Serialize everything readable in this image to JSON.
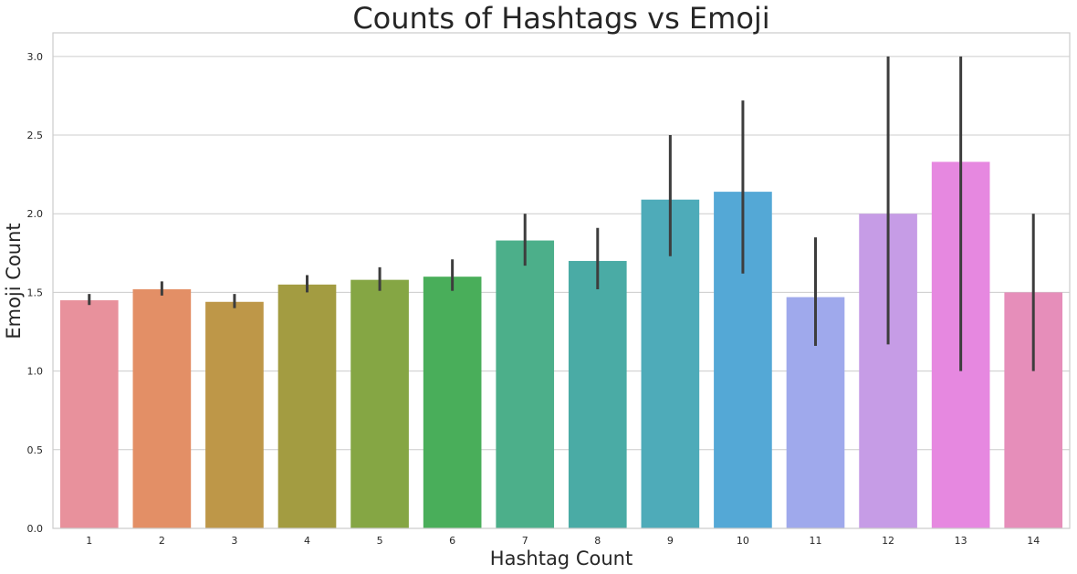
{
  "chart_data": {
    "type": "bar",
    "title": "Counts of Hashtags vs Emoji",
    "xlabel": "Hashtag Count",
    "ylabel": "Emoji Count",
    "categories": [
      "1",
      "2",
      "3",
      "4",
      "5",
      "6",
      "7",
      "8",
      "9",
      "10",
      "11",
      "12",
      "13",
      "14"
    ],
    "values": [
      1.45,
      1.52,
      1.44,
      1.55,
      1.58,
      1.6,
      1.83,
      1.7,
      2.09,
      2.14,
      1.47,
      2.0,
      2.33,
      1.5
    ],
    "error_low": [
      1.42,
      1.48,
      1.4,
      1.5,
      1.51,
      1.51,
      1.67,
      1.52,
      1.73,
      1.62,
      1.16,
      1.17,
      1.0,
      1.0
    ],
    "error_high": [
      1.49,
      1.57,
      1.49,
      1.61,
      1.66,
      1.71,
      2.0,
      1.91,
      2.5,
      2.72,
      1.85,
      3.0,
      3.0,
      2.0
    ],
    "colors": [
      "#e8919c",
      "#e38f66",
      "#be9748",
      "#a39c41",
      "#85a644",
      "#49ae5a",
      "#4caf8a",
      "#4aaba5",
      "#4eabb9",
      "#54a8d6",
      "#9fa9ec",
      "#c69ce6",
      "#e688e0",
      "#e68eba"
    ],
    "error_color": "#3d3d3d",
    "ylim": [
      0,
      3.15
    ],
    "yticks": [
      0.0,
      0.5,
      1.0,
      1.5,
      2.0,
      2.5,
      3.0
    ],
    "ytick_labels": [
      "0.0",
      "0.5",
      "1.0",
      "1.5",
      "2.0",
      "2.5",
      "3.0"
    ],
    "grid": "horizontal"
  }
}
